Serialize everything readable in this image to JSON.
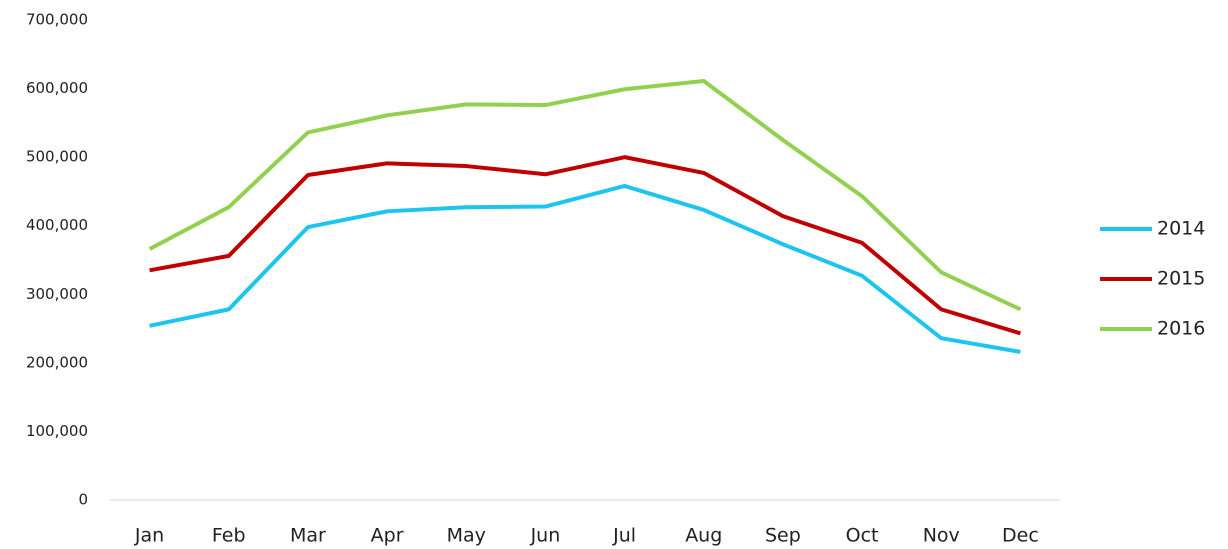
{
  "chart_data": {
    "type": "line",
    "categories": [
      "Jan",
      "Feb",
      "Mar",
      "Apr",
      "May",
      "Jun",
      "Jul",
      "Aug",
      "Sep",
      "Oct",
      "Nov",
      "Dec"
    ],
    "series": [
      {
        "name": "2014",
        "color": "#1ec4f0",
        "values": [
          254000,
          278000,
          398000,
          421000,
          427000,
          428000,
          458000,
          423000,
          373000,
          327000,
          236000,
          216000
        ]
      },
      {
        "name": "2015",
        "color": "#c00000",
        "values": [
          335000,
          356000,
          474000,
          491000,
          487000,
          475000,
          500000,
          477000,
          414000,
          375000,
          278000,
          243000
        ]
      },
      {
        "name": "2016",
        "color": "#92d050",
        "values": [
          366000,
          427000,
          536000,
          561000,
          577000,
          576000,
          599000,
          611000,
          525000,
          443000,
          332000,
          278000
        ]
      }
    ],
    "ylim": [
      0,
      700000
    ],
    "yticks": [
      0,
      {
        "value": 100000,
        "label": "100,000"
      },
      {
        "value": 200000,
        "label": "200,000"
      },
      {
        "value": 300000,
        "label": "300,000"
      },
      {
        "value": 400000,
        "label": "400,000"
      },
      {
        "value": 500000,
        "label": "500,000"
      },
      {
        "value": 600000,
        "label": "600,000"
      },
      {
        "value": 700000,
        "label": "700,000"
      }
    ],
    "grid": false,
    "legend": "right"
  }
}
